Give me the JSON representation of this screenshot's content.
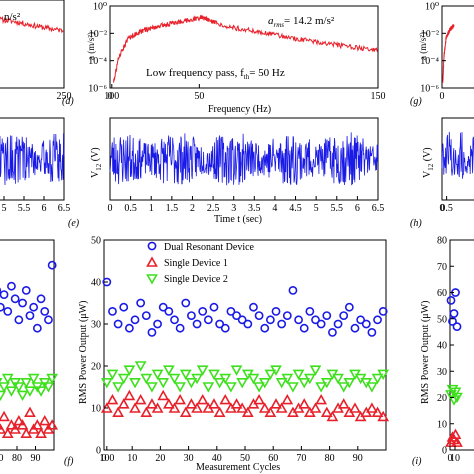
{
  "panel_labels": {
    "d": "(d)",
    "e": "(e)",
    "f": "(f)",
    "g": "(g)",
    "h": "(h)",
    "i": "(i)"
  },
  "colors": {
    "blue": "#1a1ae6",
    "red": "#e8202a",
    "green": "#3ee01e",
    "black": "#000000"
  },
  "chart_data": [
    {
      "id": "left-top",
      "type": "line",
      "title": "",
      "annotation": "n/s²",
      "xticks": [
        "0",
        "250"
      ],
      "xlim": [
        0,
        250
      ],
      "ylog": true,
      "ylim": [
        1e-06,
        1
      ],
      "series": [
        {
          "color": "#e8202a",
          "x": [
            0,
            50,
            100,
            150,
            200,
            250
          ],
          "y": [
            0.06,
            0.05,
            0.035,
            0.02,
            0.012,
            0.008
          ]
        }
      ]
    },
    {
      "id": "panel-d",
      "type": "line",
      "annotation_main": "a",
      "annotation_sub": "rms",
      "annotation_value": "= 14.2 m/s²",
      "filter_text_main": "Low frequency pass, f",
      "filter_text_sub": "th",
      "filter_text_value": "= 50 Hz",
      "xlabel": "Frequency (Hz)",
      "ylabel": "a (m/s²)",
      "xticks": [
        "0",
        "50",
        "100",
        "150"
      ],
      "yticks": [
        "10⁻⁶",
        "10⁻⁴",
        "10⁻²",
        "10⁰"
      ],
      "xlim": [
        0,
        150
      ],
      "ylog": true,
      "ylim": [
        1e-06,
        1
      ],
      "series": [
        {
          "color": "#e8202a",
          "x": [
            2,
            5,
            10,
            15,
            20,
            25,
            30,
            35,
            40,
            45,
            50,
            52,
            55,
            60,
            70,
            80,
            90,
            100,
            110,
            120,
            130,
            140,
            150
          ],
          "y": [
            3e-06,
            0.0002,
            0.004,
            0.01,
            0.018,
            0.028,
            0.04,
            0.055,
            0.075,
            0.1,
            0.13,
            0.14,
            0.09,
            0.05,
            0.025,
            0.015,
            0.009,
            0.005,
            0.003,
            0.002,
            0.0012,
            0.0008,
            0.0006
          ]
        }
      ]
    },
    {
      "id": "right-top",
      "type": "line",
      "ylabel": "a (m/s²)",
      "yticks": [
        "10⁻⁶",
        "10⁻⁴",
        "10⁻²",
        "10⁰"
      ],
      "xticks": [
        "0"
      ],
      "xlim": [
        0,
        150
      ],
      "ylog": true,
      "ylim": [
        1e-06,
        1
      ],
      "series": [
        {
          "color": "#e8202a",
          "x": [
            2,
            5,
            10,
            15,
            20,
            25,
            30
          ],
          "y": [
            3e-06,
            0.0002,
            0.004,
            0.01,
            0.018,
            0.028,
            0.04
          ]
        }
      ]
    },
    {
      "id": "left-mid",
      "type": "line",
      "xticks": [
        "5",
        "5.5",
        "6",
        "6.5"
      ],
      "xlim": [
        4.4,
        6.5
      ],
      "ylim": [
        -4.5,
        4.5
      ],
      "series": [
        {
          "color": "#1a1ae6",
          "amplitude": 3
        }
      ]
    },
    {
      "id": "panel-e",
      "type": "line",
      "xlabel": "Time t (sec)",
      "ylabel_main": "V",
      "ylabel_sub": "12",
      "ylabel_unit": " (V)",
      "xticks": [
        "0",
        "0.5",
        "1",
        "1.5",
        "2",
        "2.5",
        "3",
        "3.5",
        "4",
        "4.5",
        "5",
        "5.5",
        "6",
        "6.5"
      ],
      "xlim": [
        0,
        6.5
      ],
      "ylim": [
        -4.5,
        4.5
      ],
      "series": [
        {
          "color": "#1a1ae6",
          "amplitude": 3
        }
      ]
    },
    {
      "id": "right-mid",
      "type": "line",
      "ylabel_main": "V",
      "ylabel_sub": "12",
      "ylabel_unit": " (V)",
      "xticks": [
        "0",
        "0.5"
      ],
      "xlim": [
        0,
        6.5
      ],
      "ylim": [
        -4.5,
        4.5
      ],
      "series": [
        {
          "color": "#1a1ae6",
          "amplitude": 3
        }
      ]
    },
    {
      "id": "left-bottom",
      "type": "scatter",
      "xticks": [
        "70",
        "80",
        "90",
        "100"
      ],
      "xlim": [
        60,
        100
      ],
      "ylim": [
        0,
        50
      ],
      "series": [
        {
          "marker": "circle",
          "color": "#1a1ae6",
          "x": [
            61,
            63,
            65,
            67,
            69,
            71,
            73,
            75,
            77,
            79,
            81,
            83,
            85,
            87,
            89,
            91,
            93,
            95,
            97,
            99
          ],
          "y": [
            42,
            40,
            36,
            41,
            38,
            34,
            37,
            33,
            39,
            36,
            31,
            35,
            38,
            32,
            34,
            29,
            36,
            33,
            31,
            44
          ]
        },
        {
          "marker": "triangle-down",
          "color": "#3ee01e",
          "x": [
            61,
            63,
            65,
            67,
            69,
            71,
            73,
            75,
            77,
            79,
            81,
            83,
            85,
            87,
            89,
            91,
            93,
            95,
            97,
            99
          ],
          "y": [
            16,
            15,
            17,
            14,
            16,
            13,
            15,
            17,
            14,
            16,
            15,
            13,
            16,
            14,
            17,
            15,
            14,
            16,
            15,
            17
          ]
        },
        {
          "marker": "triangle-up",
          "color": "#e8202a",
          "x": [
            61,
            63,
            65,
            67,
            69,
            71,
            73,
            75,
            77,
            79,
            81,
            83,
            85,
            87,
            89,
            91,
            93,
            95,
            97,
            99
          ],
          "y": [
            6,
            5,
            7,
            4,
            6,
            5,
            8,
            4,
            6,
            5,
            7,
            6,
            4,
            9,
            5,
            6,
            4,
            7,
            5,
            6
          ]
        }
      ]
    },
    {
      "id": "panel-f",
      "type": "scatter",
      "xlabel": "Measurement Cycles",
      "ylabel": "RMS Power Output (μW)",
      "xticks": [
        "0",
        "10",
        "20",
        "30",
        "40",
        "50",
        "60",
        "70",
        "80",
        "90",
        "100"
      ],
      "yticks": [
        "0",
        "10",
        "20",
        "30",
        "40",
        "50"
      ],
      "xlim": [
        0,
        100
      ],
      "ylim": [
        0,
        50
      ],
      "legend_position": "top-left",
      "series": [
        {
          "name": "Dual Resonant Device",
          "marker": "circle",
          "color": "#1a1ae6",
          "x": [
            1,
            3,
            5,
            7,
            9,
            11,
            13,
            15,
            17,
            19,
            21,
            23,
            25,
            27,
            29,
            31,
            33,
            35,
            37,
            39,
            41,
            43,
            45,
            47,
            49,
            51,
            53,
            55,
            57,
            59,
            61,
            63,
            65,
            67,
            69,
            71,
            73,
            75,
            77,
            79,
            81,
            83,
            85,
            87,
            89,
            91,
            93,
            95,
            97,
            99
          ],
          "y": [
            40,
            33,
            30,
            34,
            29,
            31,
            35,
            32,
            28,
            30,
            34,
            33,
            31,
            29,
            35,
            32,
            30,
            33,
            31,
            34,
            30,
            29,
            33,
            32,
            31,
            30,
            34,
            32,
            29,
            31,
            33,
            30,
            32,
            38,
            31,
            29,
            33,
            31,
            30,
            32,
            28,
            30,
            32,
            34,
            29,
            31,
            30,
            28,
            31,
            33
          ]
        },
        {
          "name": "Single Device 1",
          "marker": "triangle-up",
          "color": "#e8202a",
          "x": [
            1,
            3,
            5,
            7,
            9,
            11,
            13,
            15,
            17,
            19,
            21,
            23,
            25,
            27,
            29,
            31,
            33,
            35,
            37,
            39,
            41,
            43,
            45,
            47,
            49,
            51,
            53,
            55,
            57,
            59,
            61,
            63,
            65,
            67,
            69,
            71,
            73,
            75,
            77,
            79,
            81,
            83,
            85,
            87,
            89,
            91,
            93,
            95,
            97,
            99
          ],
          "y": [
            10,
            12,
            9,
            11,
            13,
            10,
            12,
            9,
            11,
            10,
            13,
            11,
            10,
            12,
            9,
            11,
            10,
            12,
            10,
            11,
            9,
            12,
            10,
            11,
            10,
            9,
            11,
            12,
            10,
            9,
            11,
            10,
            12,
            9,
            10,
            11,
            9,
            10,
            12,
            9,
            8,
            10,
            11,
            9,
            10,
            8,
            9,
            10,
            9,
            8
          ]
        },
        {
          "name": "Single Device 2",
          "marker": "triangle-down",
          "color": "#3ee01e",
          "x": [
            1,
            3,
            5,
            7,
            9,
            11,
            13,
            15,
            17,
            19,
            21,
            23,
            25,
            27,
            29,
            31,
            33,
            35,
            37,
            39,
            41,
            43,
            45,
            47,
            49,
            51,
            53,
            55,
            57,
            59,
            61,
            63,
            65,
            67,
            69,
            71,
            73,
            75,
            77,
            79,
            81,
            83,
            85,
            87,
            89,
            91,
            93,
            95,
            97,
            99
          ],
          "y": [
            16,
            18,
            15,
            17,
            19,
            16,
            20,
            17,
            15,
            18,
            16,
            19,
            17,
            15,
            18,
            16,
            17,
            19,
            15,
            18,
            16,
            17,
            15,
            19,
            16,
            18,
            17,
            15,
            16,
            18,
            19,
            16,
            17,
            15,
            18,
            16,
            17,
            19,
            15,
            16,
            18,
            17,
            15,
            16,
            18,
            17,
            16,
            15,
            17,
            18
          ]
        }
      ]
    },
    {
      "id": "right-bottom",
      "type": "scatter",
      "ylabel": "RMS Power Output (μW)",
      "yticks": [
        "0",
        "10",
        "20",
        "30",
        "40",
        "50",
        "60",
        "70",
        "80"
      ],
      "xticks": [
        "0",
        "10"
      ],
      "xlim": [
        0,
        100
      ],
      "ylim": [
        0,
        80
      ],
      "series": [
        {
          "marker": "circle",
          "color": "#1a1ae6",
          "x": [
            2,
            5,
            8,
            11,
            14
          ],
          "y": [
            57,
            49,
            52,
            60,
            47
          ]
        },
        {
          "marker": "triangle-down",
          "color": "#3ee01e",
          "x": [
            2,
            5,
            8,
            11,
            14
          ],
          "y": [
            21,
            23,
            19,
            22,
            20
          ]
        },
        {
          "marker": "triangle-up",
          "color": "#e8202a",
          "x": [
            2,
            5,
            8,
            11,
            14
          ],
          "y": [
            3,
            5,
            4,
            6,
            3
          ]
        }
      ]
    }
  ]
}
